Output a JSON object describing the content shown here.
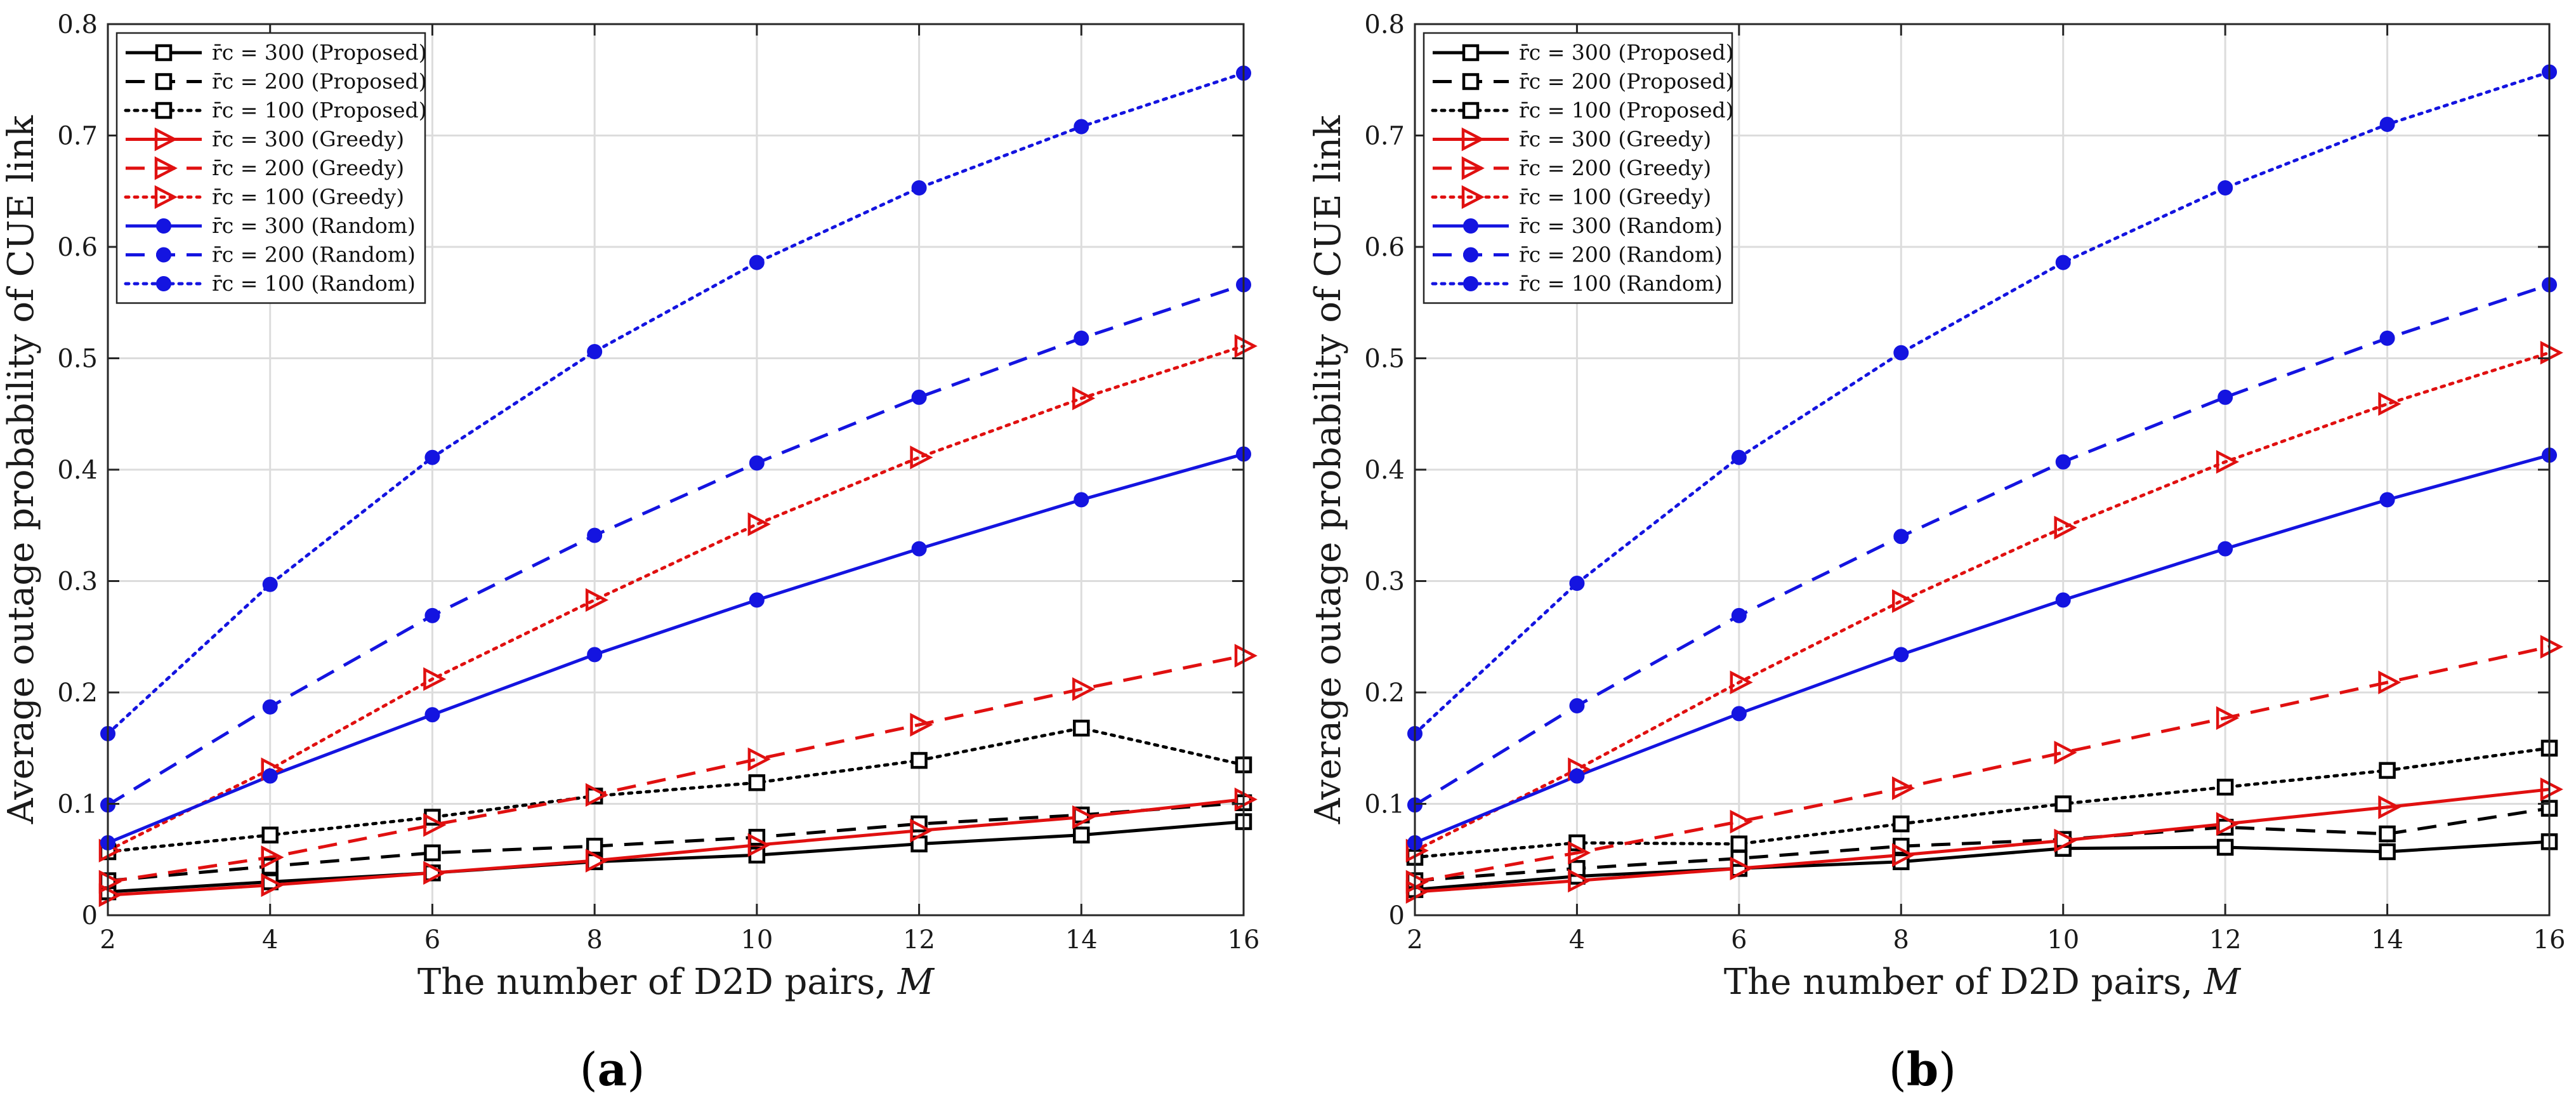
{
  "chart_data": [
    {
      "type": "line",
      "panel_label_prefix": "(",
      "panel_label_letter": "a",
      "panel_label_suffix": ")",
      "xlabel": "The number of D2D pairs,  M",
      "ylabel": "Average outage probability of CUE link",
      "x": [
        2,
        4,
        6,
        8,
        10,
        12,
        14,
        16
      ],
      "xlim": [
        2,
        16
      ],
      "ylim": [
        0,
        0.8
      ],
      "xticks": [
        "2",
        "4",
        "6",
        "8",
        "10",
        "12",
        "14",
        "16"
      ],
      "yticks": [
        "0",
        "0.1",
        "0.2",
        "0.3",
        "0.4",
        "0.5",
        "0.6",
        "0.7",
        "0.8"
      ],
      "grid": true,
      "legend_position": "top-left",
      "series": [
        {
          "name": "r̄c = 300 (Proposed)",
          "color": "#000000",
          "dash": "solid",
          "marker": "square",
          "values": [
            0.021,
            0.03,
            0.038,
            0.048,
            0.054,
            0.064,
            0.072,
            0.084
          ]
        },
        {
          "name": "r̄c = 200 (Proposed)",
          "color": "#000000",
          "dash": "dashed",
          "marker": "square",
          "values": [
            0.031,
            0.044,
            0.056,
            0.062,
            0.07,
            0.082,
            0.09,
            0.101
          ]
        },
        {
          "name": "r̄c = 100 (Proposed)",
          "color": "#000000",
          "dash": "dotted",
          "marker": "square",
          "values": [
            0.057,
            0.072,
            0.088,
            0.107,
            0.119,
            0.139,
            0.168,
            0.135
          ]
        },
        {
          "name": "r̄c = 300 (Greedy)",
          "color": "#e01010",
          "dash": "solid",
          "marker": "triangle",
          "values": [
            0.018,
            0.027,
            0.038,
            0.049,
            0.063,
            0.076,
            0.088,
            0.104
          ]
        },
        {
          "name": "r̄c = 200 (Greedy)",
          "color": "#e01010",
          "dash": "dashed",
          "marker": "triangle",
          "values": [
            0.03,
            0.052,
            0.081,
            0.108,
            0.14,
            0.171,
            0.203,
            0.233
          ]
        },
        {
          "name": "r̄c = 100 (Greedy)",
          "color": "#e01010",
          "dash": "dotted",
          "marker": "triangle",
          "values": [
            0.058,
            0.131,
            0.212,
            0.283,
            0.351,
            0.411,
            0.464,
            0.511
          ]
        },
        {
          "name": "r̄c = 300 (Random)",
          "color": "#1414e0",
          "dash": "solid",
          "marker": "dot",
          "values": [
            0.065,
            0.125,
            0.18,
            0.234,
            0.283,
            0.329,
            0.373,
            0.414
          ]
        },
        {
          "name": "r̄c = 200 (Random)",
          "color": "#1414e0",
          "dash": "dashed",
          "marker": "dot",
          "values": [
            0.099,
            0.187,
            0.269,
            0.341,
            0.406,
            0.465,
            0.518,
            0.566
          ]
        },
        {
          "name": "r̄c = 100 (Random)",
          "color": "#1414e0",
          "dash": "dotted",
          "marker": "dot",
          "values": [
            0.163,
            0.297,
            0.411,
            0.506,
            0.586,
            0.653,
            0.708,
            0.756
          ]
        }
      ]
    },
    {
      "type": "line",
      "panel_label_prefix": "(",
      "panel_label_letter": "b",
      "panel_label_suffix": ")",
      "xlabel": "The number of D2D pairs,  M",
      "ylabel": "Average outage probability of CUE link",
      "x": [
        2,
        4,
        6,
        8,
        10,
        12,
        14,
        16
      ],
      "xlim": [
        2,
        16
      ],
      "ylim": [
        0,
        0.8
      ],
      "xticks": [
        "2",
        "4",
        "6",
        "8",
        "10",
        "12",
        "14",
        "16"
      ],
      "yticks": [
        "0",
        "0.1",
        "0.2",
        "0.3",
        "0.4",
        "0.5",
        "0.6",
        "0.7",
        "0.8"
      ],
      "grid": true,
      "legend_position": "top-left",
      "series": [
        {
          "name": "r̄c = 300 (Proposed)",
          "color": "#000000",
          "dash": "solid",
          "marker": "square",
          "values": [
            0.023,
            0.035,
            0.042,
            0.048,
            0.06,
            0.061,
            0.057,
            0.066
          ]
        },
        {
          "name": "r̄c = 200 (Proposed)",
          "color": "#000000",
          "dash": "dashed",
          "marker": "square",
          "values": [
            0.031,
            0.042,
            0.051,
            0.062,
            0.068,
            0.079,
            0.073,
            0.096
          ]
        },
        {
          "name": "r̄c = 100 (Proposed)",
          "color": "#000000",
          "dash": "dotted",
          "marker": "square",
          "values": [
            0.052,
            0.065,
            0.064,
            0.082,
            0.1,
            0.115,
            0.13,
            0.15
          ]
        },
        {
          "name": "r̄c = 300 (Greedy)",
          "color": "#e01010",
          "dash": "solid",
          "marker": "triangle",
          "values": [
            0.021,
            0.031,
            0.042,
            0.054,
            0.067,
            0.082,
            0.097,
            0.113
          ]
        },
        {
          "name": "r̄c = 200 (Greedy)",
          "color": "#e01010",
          "dash": "dashed",
          "marker": "triangle",
          "values": [
            0.03,
            0.056,
            0.084,
            0.114,
            0.146,
            0.177,
            0.209,
            0.241
          ]
        },
        {
          "name": "r̄c = 100 (Greedy)",
          "color": "#e01010",
          "dash": "dotted",
          "marker": "triangle",
          "values": [
            0.058,
            0.131,
            0.209,
            0.282,
            0.348,
            0.407,
            0.459,
            0.505
          ]
        },
        {
          "name": "r̄c = 300 (Random)",
          "color": "#1414e0",
          "dash": "solid",
          "marker": "dot",
          "values": [
            0.065,
            0.125,
            0.181,
            0.234,
            0.283,
            0.329,
            0.373,
            0.413
          ]
        },
        {
          "name": "r̄c = 200 (Random)",
          "color": "#1414e0",
          "dash": "dashed",
          "marker": "dot",
          "values": [
            0.099,
            0.188,
            0.269,
            0.34,
            0.407,
            0.465,
            0.518,
            0.566
          ]
        },
        {
          "name": "r̄c = 100 (Random)",
          "color": "#1414e0",
          "dash": "dotted",
          "marker": "dot",
          "values": [
            0.163,
            0.298,
            0.411,
            0.505,
            0.586,
            0.653,
            0.71,
            0.757
          ]
        }
      ]
    }
  ]
}
